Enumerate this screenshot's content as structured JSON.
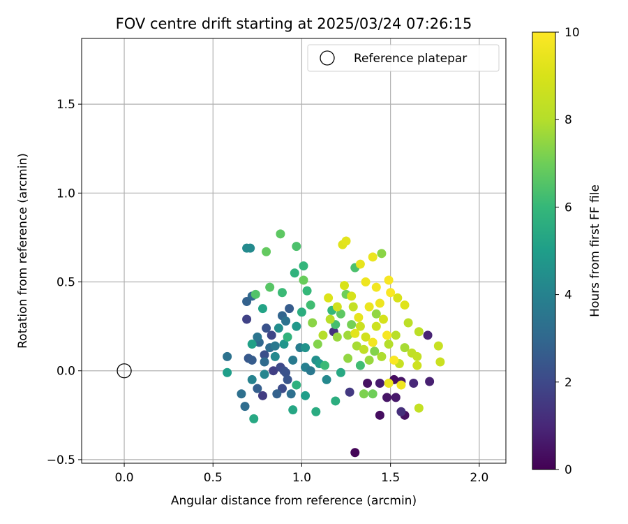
{
  "chart_data": {
    "type": "scatter",
    "title": "FOV centre drift starting at 2025/03/24 07:26:15",
    "xlabel": "Angular distance from reference (arcmin)",
    "ylabel": "Rotation from reference (arcmin)",
    "xlim": [
      -0.24,
      2.15
    ],
    "ylim": [
      -0.52,
      1.87
    ],
    "x_ticks": [
      0.0,
      0.5,
      1.0,
      1.5,
      2.0
    ],
    "x_tick_labels": [
      "0.0",
      "0.5",
      "1.0",
      "1.5",
      "2.0"
    ],
    "y_ticks": [
      -0.5,
      0.0,
      0.5,
      1.0,
      1.5
    ],
    "y_tick_labels": [
      "−0.5",
      "0.0",
      "0.5",
      "1.0",
      "1.5"
    ],
    "grid": true,
    "legend": {
      "position": "top-right",
      "entries": [
        "Reference platepar"
      ]
    },
    "reference_point": {
      "x": 0.0,
      "y": 0.0,
      "label": "Reference platepar"
    },
    "colorbar": {
      "label": "Hours from first FF file",
      "range": [
        0,
        10
      ],
      "ticks": [
        0,
        2,
        4,
        6,
        8,
        10
      ],
      "tick_labels": [
        "0",
        "2",
        "4",
        "6",
        "8",
        "10"
      ],
      "colormap": "viridis"
    },
    "points": [
      {
        "x": 1.3,
        "y": -0.46,
        "h": 0.1
      },
      {
        "x": 1.44,
        "y": -0.25,
        "h": 0.3
      },
      {
        "x": 1.58,
        "y": -0.25,
        "h": 0.4
      },
      {
        "x": 1.48,
        "y": -0.15,
        "h": 0.5
      },
      {
        "x": 1.53,
        "y": -0.15,
        "h": 0.6
      },
      {
        "x": 1.37,
        "y": -0.07,
        "h": 0.4
      },
      {
        "x": 1.44,
        "y": -0.07,
        "h": 0.7
      },
      {
        "x": 1.72,
        "y": -0.06,
        "h": 0.8
      },
      {
        "x": 1.56,
        "y": -0.06,
        "h": 0.5
      },
      {
        "x": 1.71,
        "y": 0.2,
        "h": 0.9
      },
      {
        "x": 1.52,
        "y": -0.05,
        "h": 0.3
      },
      {
        "x": 1.63,
        "y": -0.07,
        "h": 1.0
      },
      {
        "x": 1.56,
        "y": -0.23,
        "h": 1.2
      },
      {
        "x": 1.18,
        "y": 0.22,
        "h": 1.3
      },
      {
        "x": 1.27,
        "y": -0.12,
        "h": 1.5
      },
      {
        "x": 0.69,
        "y": 0.29,
        "h": 1.8
      },
      {
        "x": 0.78,
        "y": -0.14,
        "h": 1.6
      },
      {
        "x": 0.83,
        "y": 0.2,
        "h": 1.9
      },
      {
        "x": 0.84,
        "y": 0.0,
        "h": 1.7
      },
      {
        "x": 0.88,
        "y": 0.02,
        "h": 2.0
      },
      {
        "x": 0.89,
        "y": -0.1,
        "h": 2.1
      },
      {
        "x": 0.9,
        "y": 0.0,
        "h": 2.2
      },
      {
        "x": 0.91,
        "y": -0.01,
        "h": 2.3
      },
      {
        "x": 0.92,
        "y": -0.05,
        "h": 2.4
      },
      {
        "x": 0.7,
        "y": 0.07,
        "h": 2.5
      },
      {
        "x": 0.72,
        "y": 0.06,
        "h": 2.6
      },
      {
        "x": 0.75,
        "y": -0.1,
        "h": 2.7
      },
      {
        "x": 0.79,
        "y": 0.09,
        "h": 2.2
      },
      {
        "x": 0.8,
        "y": 0.24,
        "h": 2.3
      },
      {
        "x": 0.86,
        "y": -0.13,
        "h": 2.8
      },
      {
        "x": 0.89,
        "y": 0.31,
        "h": 2.9
      },
      {
        "x": 0.93,
        "y": 0.35,
        "h": 2.6
      },
      {
        "x": 0.69,
        "y": 0.39,
        "h": 2.8
      },
      {
        "x": 0.72,
        "y": 0.42,
        "h": 3.0
      },
      {
        "x": 0.79,
        "y": 0.05,
        "h": 3.1
      },
      {
        "x": 0.82,
        "y": 0.13,
        "h": 3.2
      },
      {
        "x": 0.76,
        "y": 0.16,
        "h": 3.0
      },
      {
        "x": 0.94,
        "y": -0.13,
        "h": 3.3
      },
      {
        "x": 0.58,
        "y": 0.08,
        "h": 3.4
      },
      {
        "x": 0.66,
        "y": -0.13,
        "h": 3.3
      },
      {
        "x": 0.68,
        "y": -0.2,
        "h": 3.2
      },
      {
        "x": 0.75,
        "y": 0.19,
        "h": 3.5
      },
      {
        "x": 0.85,
        "y": 0.14,
        "h": 3.6
      },
      {
        "x": 0.91,
        "y": 0.28,
        "h": 3.4
      },
      {
        "x": 0.95,
        "y": 0.06,
        "h": 3.7
      },
      {
        "x": 0.99,
        "y": 0.13,
        "h": 3.8
      },
      {
        "x": 1.02,
        "y": 0.02,
        "h": 3.9
      },
      {
        "x": 1.05,
        "y": 0.0,
        "h": 3.6
      },
      {
        "x": 0.72,
        "y": -0.05,
        "h": 4.0
      },
      {
        "x": 0.79,
        "y": -0.02,
        "h": 4.1
      },
      {
        "x": 0.85,
        "y": 0.08,
        "h": 4.2
      },
      {
        "x": 0.71,
        "y": 0.69,
        "h": 4.3
      },
      {
        "x": 0.87,
        "y": 0.24,
        "h": 4.4
      },
      {
        "x": 1.08,
        "y": 0.06,
        "h": 4.5
      },
      {
        "x": 1.14,
        "y": -0.05,
        "h": 4.2
      },
      {
        "x": 1.02,
        "y": 0.13,
        "h": 4.6
      },
      {
        "x": 0.9,
        "y": 0.15,
        "h": 4.7
      },
      {
        "x": 0.97,
        "y": 0.25,
        "h": 4.8
      },
      {
        "x": 1.1,
        "y": 0.04,
        "h": 4.9
      },
      {
        "x": 0.58,
        "y": -0.01,
        "h": 5.0
      },
      {
        "x": 0.72,
        "y": 0.15,
        "h": 5.1
      },
      {
        "x": 0.78,
        "y": 0.35,
        "h": 5.2
      },
      {
        "x": 1.02,
        "y": -0.14,
        "h": 5.0
      },
      {
        "x": 0.95,
        "y": -0.22,
        "h": 5.3
      },
      {
        "x": 0.73,
        "y": -0.27,
        "h": 5.4
      },
      {
        "x": 1.08,
        "y": -0.23,
        "h": 5.5
      },
      {
        "x": 1.19,
        "y": -0.17,
        "h": 5.6
      },
      {
        "x": 1.22,
        "y": -0.01,
        "h": 5.4
      },
      {
        "x": 0.97,
        "y": -0.08,
        "h": 5.7
      },
      {
        "x": 0.92,
        "y": 0.19,
        "h": 5.8
      },
      {
        "x": 1.0,
        "y": 0.33,
        "h": 5.6
      },
      {
        "x": 1.01,
        "y": 0.59,
        "h": 5.9
      },
      {
        "x": 1.03,
        "y": 0.45,
        "h": 6.0
      },
      {
        "x": 0.96,
        "y": 0.55,
        "h": 5.8
      },
      {
        "x": 0.89,
        "y": 0.44,
        "h": 6.1
      },
      {
        "x": 1.05,
        "y": 0.37,
        "h": 6.2
      },
      {
        "x": 1.17,
        "y": 0.34,
        "h": 6.0
      },
      {
        "x": 1.19,
        "y": 0.26,
        "h": 6.3
      },
      {
        "x": 1.13,
        "y": 0.03,
        "h": 6.1
      },
      {
        "x": 1.3,
        "y": 0.58,
        "h": 6.4
      },
      {
        "x": 1.33,
        "y": 0.03,
        "h": 6.2
      },
      {
        "x": 0.74,
        "y": 0.43,
        "h": 6.5
      },
      {
        "x": 0.82,
        "y": 0.47,
        "h": 6.6
      },
      {
        "x": 0.97,
        "y": 0.7,
        "h": 6.4
      },
      {
        "x": 0.88,
        "y": 0.77,
        "h": 6.7
      },
      {
        "x": 0.69,
        "y": 0.69,
        "h": 4.3
      },
      {
        "x": 0.8,
        "y": 0.67,
        "h": 6.8
      },
      {
        "x": 1.01,
        "y": 0.51,
        "h": 6.9
      },
      {
        "x": 1.22,
        "y": 0.32,
        "h": 6.7
      },
      {
        "x": 1.25,
        "y": 0.43,
        "h": 7.0
      },
      {
        "x": 1.28,
        "y": 0.26,
        "h": 7.1
      },
      {
        "x": 1.35,
        "y": -0.13,
        "h": 7.2
      },
      {
        "x": 1.4,
        "y": -0.13,
        "h": 7.0
      },
      {
        "x": 1.41,
        "y": 0.11,
        "h": 7.3
      },
      {
        "x": 1.45,
        "y": 0.66,
        "h": 7.4
      },
      {
        "x": 1.42,
        "y": 0.32,
        "h": 7.5
      },
      {
        "x": 1.2,
        "y": 0.19,
        "h": 7.6
      },
      {
        "x": 1.26,
        "y": 0.2,
        "h": 7.7
      },
      {
        "x": 1.31,
        "y": 0.14,
        "h": 7.8
      },
      {
        "x": 1.38,
        "y": 0.06,
        "h": 7.6
      },
      {
        "x": 1.45,
        "y": 0.08,
        "h": 7.9
      },
      {
        "x": 1.49,
        "y": 0.15,
        "h": 8.0
      },
      {
        "x": 1.53,
        "y": 0.2,
        "h": 8.1
      },
      {
        "x": 1.58,
        "y": 0.13,
        "h": 7.8
      },
      {
        "x": 1.6,
        "y": 0.27,
        "h": 8.2
      },
      {
        "x": 1.62,
        "y": 0.1,
        "h": 8.3
      },
      {
        "x": 1.65,
        "y": 0.08,
        "h": 8.4
      },
      {
        "x": 1.66,
        "y": 0.22,
        "h": 8.2
      },
      {
        "x": 1.77,
        "y": 0.14,
        "h": 8.5
      },
      {
        "x": 1.78,
        "y": 0.05,
        "h": 8.6
      },
      {
        "x": 1.66,
        "y": -0.21,
        "h": 8.4
      },
      {
        "x": 1.65,
        "y": 0.03,
        "h": 8.7
      },
      {
        "x": 1.55,
        "y": 0.04,
        "h": 8.5
      },
      {
        "x": 1.36,
        "y": 0.19,
        "h": 8.8
      },
      {
        "x": 1.33,
        "y": 0.25,
        "h": 8.6
      },
      {
        "x": 1.28,
        "y": 0.42,
        "h": 8.9
      },
      {
        "x": 1.24,
        "y": 0.48,
        "h": 9.0
      },
      {
        "x": 1.2,
        "y": 0.36,
        "h": 8.8
      },
      {
        "x": 1.15,
        "y": 0.41,
        "h": 9.1
      },
      {
        "x": 1.23,
        "y": 0.71,
        "h": 9.2
      },
      {
        "x": 1.25,
        "y": 0.73,
        "h": 9.3
      },
      {
        "x": 1.33,
        "y": 0.6,
        "h": 9.4
      },
      {
        "x": 1.4,
        "y": 0.64,
        "h": 9.5
      },
      {
        "x": 1.36,
        "y": 0.5,
        "h": 9.6
      },
      {
        "x": 1.42,
        "y": 0.47,
        "h": 9.7
      },
      {
        "x": 1.49,
        "y": 0.51,
        "h": 9.8
      },
      {
        "x": 1.5,
        "y": 0.44,
        "h": 9.9
      },
      {
        "x": 1.44,
        "y": 0.38,
        "h": 9.6
      },
      {
        "x": 1.38,
        "y": 0.36,
        "h": 9.5
      },
      {
        "x": 1.32,
        "y": 0.3,
        "h": 9.4
      },
      {
        "x": 1.3,
        "y": 0.21,
        "h": 9.3
      },
      {
        "x": 1.4,
        "y": 0.16,
        "h": 9.7
      },
      {
        "x": 1.48,
        "y": 0.2,
        "h": 9.8
      },
      {
        "x": 1.52,
        "y": 0.06,
        "h": 9.9
      },
      {
        "x": 1.56,
        "y": -0.08,
        "h": 9.6
      },
      {
        "x": 1.49,
        "y": -0.07,
        "h": 9.5
      },
      {
        "x": 1.58,
        "y": 0.37,
        "h": 9.2
      },
      {
        "x": 1.54,
        "y": 0.41,
        "h": 9.0
      },
      {
        "x": 1.12,
        "y": 0.2,
        "h": 8.0
      },
      {
        "x": 1.16,
        "y": 0.29,
        "h": 8.1
      },
      {
        "x": 1.09,
        "y": 0.15,
        "h": 7.3
      },
      {
        "x": 1.06,
        "y": 0.27,
        "h": 7.4
      },
      {
        "x": 1.26,
        "y": 0.07,
        "h": 7.5
      },
      {
        "x": 1.35,
        "y": 0.12,
        "h": 8.3
      },
      {
        "x": 1.42,
        "y": 0.25,
        "h": 8.7
      },
      {
        "x": 1.46,
        "y": 0.29,
        "h": 8.9
      },
      {
        "x": 1.29,
        "y": 0.36,
        "h": 8.4
      }
    ]
  }
}
